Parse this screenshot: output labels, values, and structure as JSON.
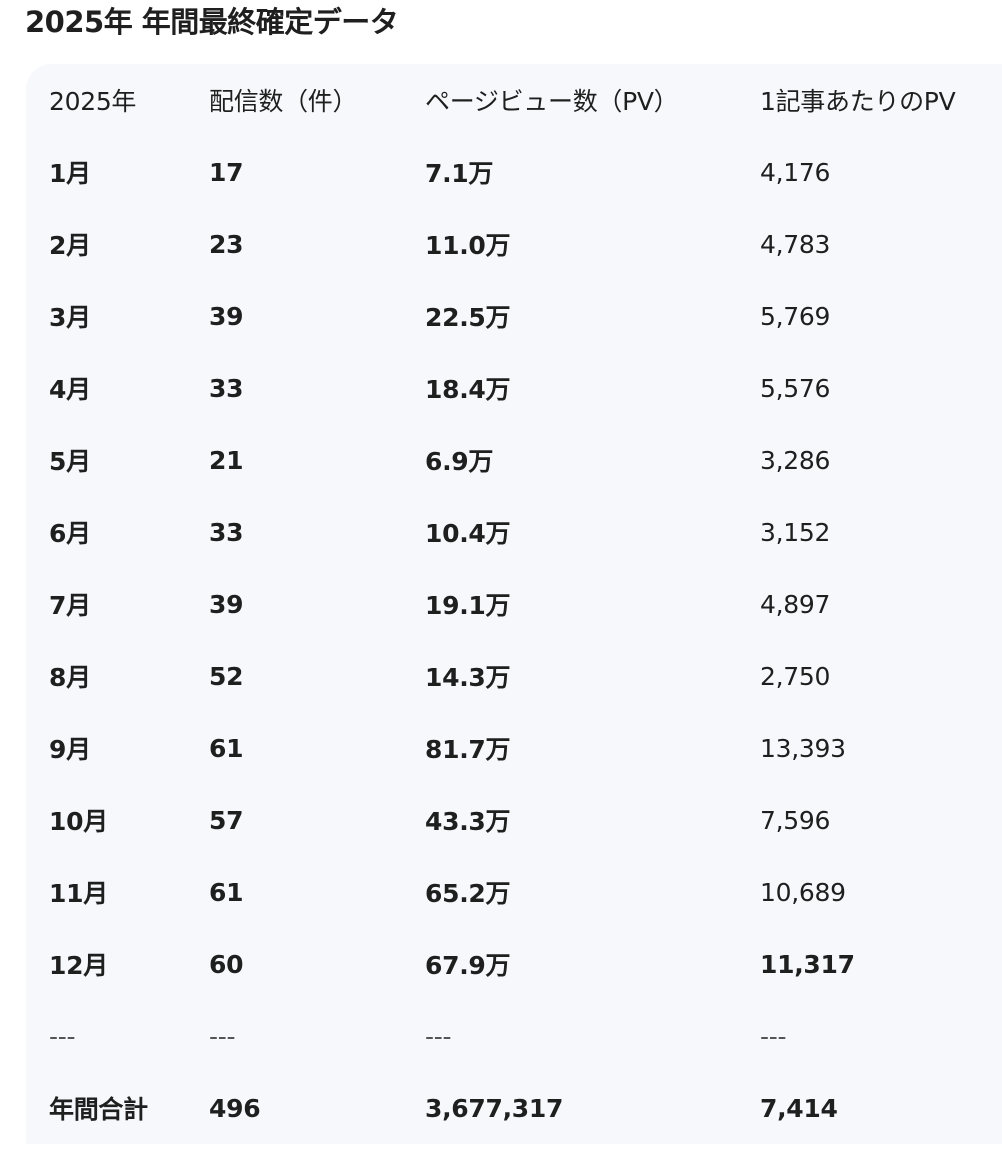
{
  "title": "2025年 年間最終確定データ",
  "table": {
    "headers": [
      "2025年",
      "配信数（件）",
      "ページビュー数（PV）",
      "1記事あたりのPV"
    ],
    "rows": [
      [
        "1月",
        "17",
        "7.1万",
        "4,176"
      ],
      [
        "2月",
        "23",
        "11.0万",
        "4,783"
      ],
      [
        "3月",
        "39",
        "22.5万",
        "5,769"
      ],
      [
        "4月",
        "33",
        "18.4万",
        "5,576"
      ],
      [
        "5月",
        "21",
        "6.9万",
        "3,286"
      ],
      [
        "6月",
        "33",
        "10.4万",
        "3,152"
      ],
      [
        "7月",
        "39",
        "19.1万",
        "4,897"
      ],
      [
        "8月",
        "52",
        "14.3万",
        "2,750"
      ],
      [
        "9月",
        "61",
        "81.7万",
        "13,393"
      ],
      [
        "10月",
        "57",
        "43.3万",
        "7,596"
      ],
      [
        "11月",
        "61",
        "65.2万",
        "10,689"
      ],
      [
        "12月",
        "60",
        "67.9万",
        "11,317"
      ],
      [
        "---",
        "---",
        "---",
        "---"
      ],
      [
        "年間合計",
        "496",
        "3,677,317",
        "7,414"
      ]
    ]
  }
}
